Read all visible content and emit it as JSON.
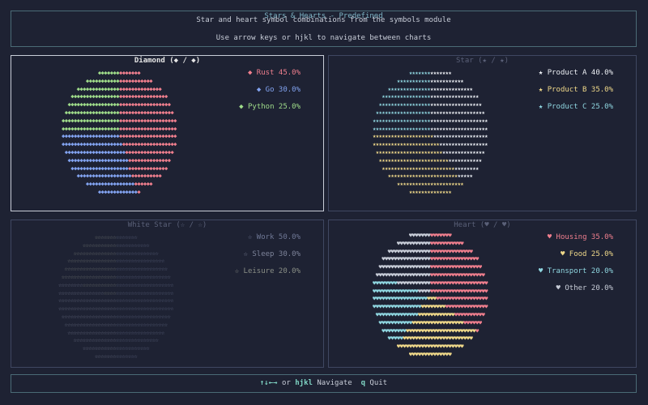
{
  "header": {
    "title": "Stars & Hearts - Predefined",
    "line1": "Star and heart symbol combinations from the symbols module",
    "line2": "Use arrow keys or hjkl to navigate between charts"
  },
  "panels": [
    {
      "title": "Diamond (◆ / ◆)",
      "symbol": "◆",
      "active": true,
      "slices": [
        {
          "label": "Rust",
          "value": 45.0,
          "color": "#f07f8e"
        },
        {
          "label": "Go",
          "value": 30.0,
          "color": "#82a3f0"
        },
        {
          "label": "Python",
          "value": 25.0,
          "color": "#9fdc8a"
        }
      ],
      "legend": [
        "◆ Rust 45.0%",
        "◆ Go 30.0%",
        "◆ Python 25.0%"
      ]
    },
    {
      "title": "Star (★ / ★)",
      "symbol": "★",
      "active": false,
      "slices": [
        {
          "label": "Product A",
          "value": 40.0,
          "color": "#eceff4"
        },
        {
          "label": "Product B",
          "value": 35.0,
          "color": "#f0d98a"
        },
        {
          "label": "Product C",
          "value": 25.0,
          "color": "#8fd6e0"
        }
      ],
      "legend": [
        "★ Product A 40.0%",
        "★ Product B 35.0%",
        "★ Product C 25.0%"
      ]
    },
    {
      "title": "White Star (☆ / ☆)",
      "symbol": "☆",
      "active": false,
      "slices": [
        {
          "label": "Work",
          "value": 50.0,
          "color": "#6f7896"
        },
        {
          "label": "Sleep",
          "value": 30.0,
          "color": "#7d8399"
        },
        {
          "label": "Leisure",
          "value": 20.0,
          "color": "#8a8f86"
        }
      ],
      "legend": [
        "☆ Work 50.0%",
        "☆ Sleep 30.0%",
        "☆ Leisure 20.0%"
      ]
    },
    {
      "title": "Heart (♥ / ♥)",
      "symbol": "♥",
      "active": false,
      "slices": [
        {
          "label": "Housing",
          "value": 35.0,
          "color": "#f07f8e"
        },
        {
          "label": "Food",
          "value": 25.0,
          "color": "#f0d98a"
        },
        {
          "label": "Transport",
          "value": 20.0,
          "color": "#8fd6e0"
        },
        {
          "label": "Other",
          "value": 20.0,
          "color": "#c8cdd8"
        }
      ],
      "legend": [
        "♥ Housing 35.0%",
        "♥ Food 25.0%",
        "♥ Transport 20.0%",
        "♥ Other 20.0%"
      ]
    }
  ],
  "footer": {
    "nav_keys": "↑↓←→",
    "or": "or",
    "hjkl": "hjkl",
    "navigate": "Navigate",
    "q": "q",
    "quit": "Quit"
  },
  "chart_data": [
    {
      "type": "pie",
      "title": "Diamond (◆ / ◆)",
      "categories": [
        "Rust",
        "Go",
        "Python"
      ],
      "values": [
        45.0,
        30.0,
        25.0
      ]
    },
    {
      "type": "pie",
      "title": "Star (★ / ★)",
      "categories": [
        "Product A",
        "Product B",
        "Product C"
      ],
      "values": [
        40.0,
        35.0,
        25.0
      ]
    },
    {
      "type": "pie",
      "title": "White Star (☆ / ☆)",
      "categories": [
        "Work",
        "Sleep",
        "Leisure"
      ],
      "values": [
        50.0,
        30.0,
        20.0
      ]
    },
    {
      "type": "pie",
      "title": "Heart (♥ / ♥)",
      "categories": [
        "Housing",
        "Food",
        "Transport",
        "Other"
      ],
      "values": [
        35.0,
        25.0,
        20.0,
        20.0
      ]
    }
  ]
}
